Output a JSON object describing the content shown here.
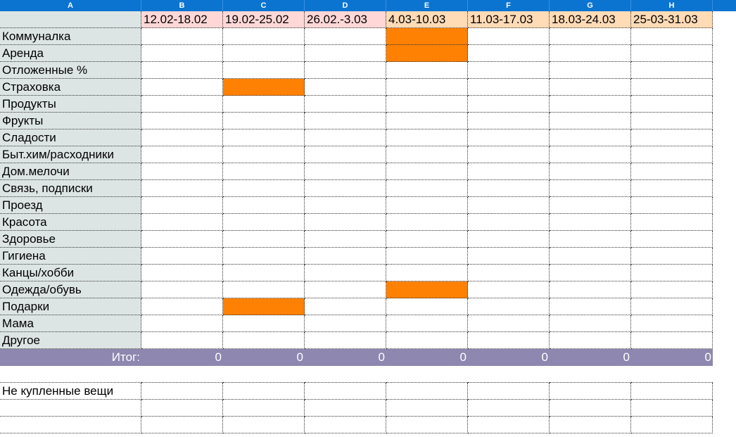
{
  "columns": [
    "A",
    "B",
    "C",
    "D",
    "E",
    "F",
    "G",
    "H"
  ],
  "dates": [
    "12.02-18.02",
    "19.02-25.02",
    "26.02.-3.03",
    "4.03-10.03",
    "11.03-17.03",
    "18.03-24.03",
    "25-03-31.03"
  ],
  "categories": [
    "Коммуналка",
    "Аренда",
    "Отложенные %",
    "Страховка",
    "Продукты",
    "Фрукты",
    "Сладости",
    "Быт.хим/расходники",
    "Дом.мелочи",
    "Связь, подписки",
    "Проезд",
    "Красота",
    "Здоровье",
    "Гигиена",
    "Канцы/хобби",
    "Одежда/обувь",
    "Подарки",
    "Мама",
    "Другое"
  ],
  "highlighted_cells": [
    {
      "row": "Коммуналка",
      "column": "E"
    },
    {
      "row": "Аренда",
      "column": "E"
    },
    {
      "row": "Страховка",
      "column": "C"
    },
    {
      "row": "Одежда/обувь",
      "column": "E"
    },
    {
      "row": "Подарки",
      "column": "C"
    }
  ],
  "total": {
    "label": "Итог:",
    "values": [
      "0",
      "0",
      "0",
      "0",
      "0",
      "0",
      "0"
    ]
  },
  "unbought": {
    "label": "Не купленные вещи"
  },
  "colors": {
    "header": "#0b74d1",
    "label_column": "#dde5e4",
    "dates_feb": "#ffd7d7",
    "dates_mar": "#ffdbb6",
    "highlight": "#ff8103",
    "total_row": "#8e87b0"
  }
}
